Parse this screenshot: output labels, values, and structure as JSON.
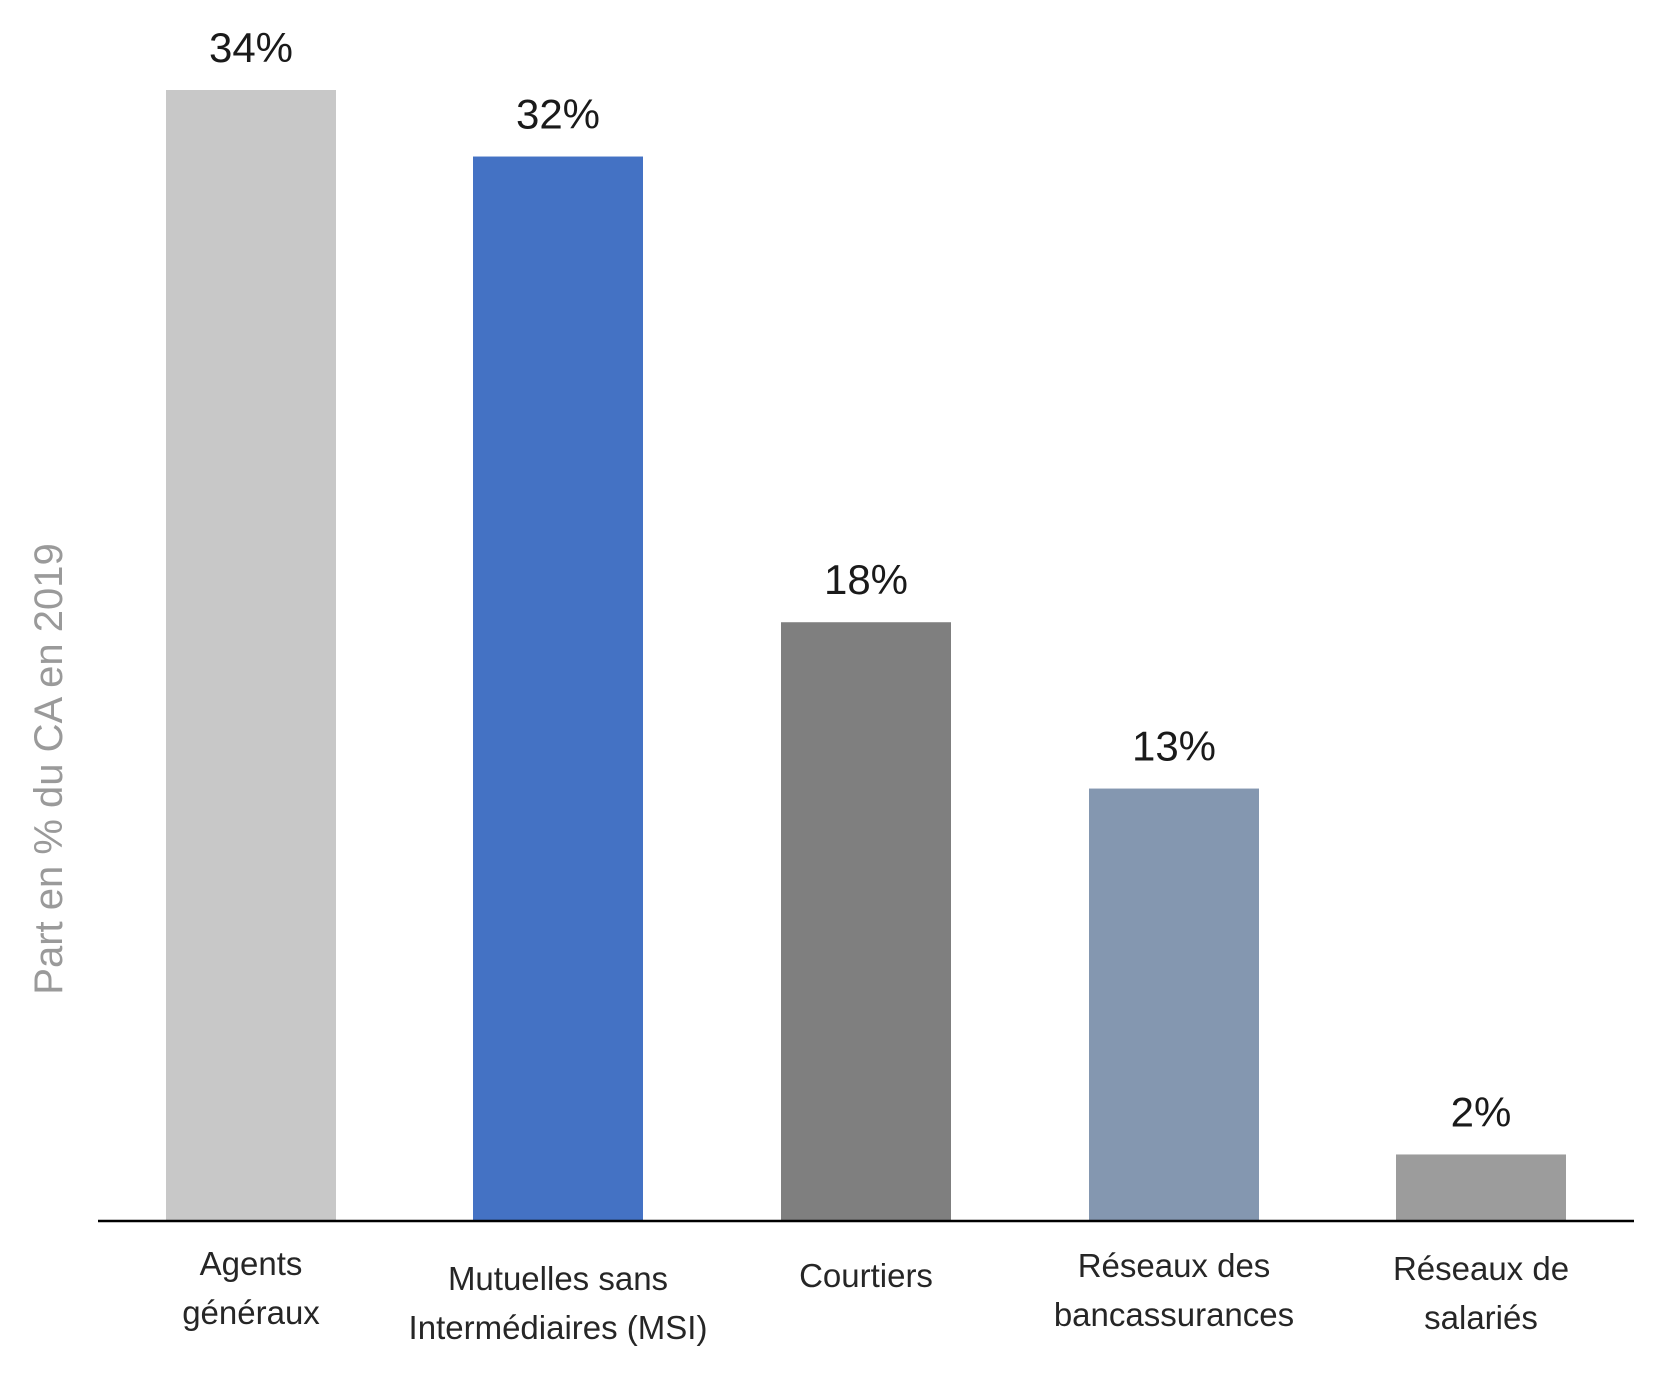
{
  "chart_data": {
    "type": "bar",
    "title": "",
    "xlabel": "",
    "ylabel": "Part en % du CA  en 2019",
    "ylim": [
      0,
      34
    ],
    "grid": false,
    "legend": "none",
    "categories": [
      [
        "Agents",
        "généraux"
      ],
      [
        "Mutuelles sans",
        "Intermédiaires (MSI)"
      ],
      [
        "Courtiers"
      ],
      [
        "Réseaux des",
        "bancassurances"
      ],
      [
        "Réseaux de",
        "salariés"
      ]
    ],
    "values": [
      34,
      32,
      18,
      13,
      2
    ],
    "value_labels": [
      "34%",
      "32%",
      "18%",
      "13%",
      "2%"
    ],
    "colors": [
      "#c8c8c8",
      "#4472c4",
      "#7f7f7f",
      "#8497b0",
      "#9c9c9c"
    ]
  }
}
